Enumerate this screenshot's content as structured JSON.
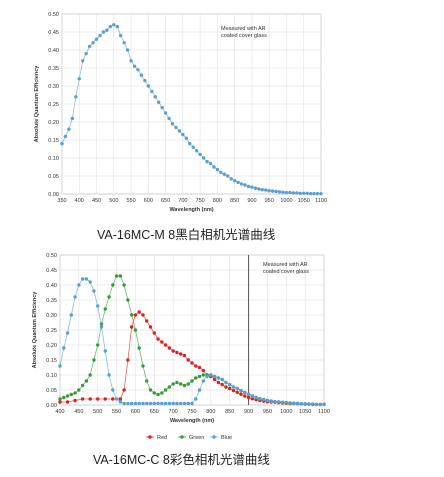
{
  "captions": {
    "chart1": "VA-16MC-M 8黑白相机光谱曲线",
    "chart2": "VA-16MC-C 8彩色相机光谱曲线"
  },
  "chart_data": [
    {
      "type": "line",
      "xlabel": "Wavelength (nm)",
      "ylabel": "Absolute Quantum Efficiency",
      "annotation": [
        "Measured with AR",
        "coated cover glass"
      ],
      "xlim": [
        350,
        1100
      ],
      "ylim": [
        0,
        0.5
      ],
      "xticks": [
        350,
        400,
        450,
        500,
        550,
        600,
        650,
        700,
        750,
        800,
        850,
        900,
        950,
        1000,
        1050,
        1100
      ],
      "yticks": [
        0,
        0.05,
        0.1,
        0.15,
        0.2,
        0.25,
        0.3,
        0.35,
        0.4,
        0.45,
        0.5
      ],
      "grid": true,
      "series": [
        {
          "color": "#5b9fd0",
          "x": [
            350,
            360,
            370,
            380,
            390,
            400,
            410,
            420,
            430,
            440,
            450,
            460,
            470,
            480,
            490,
            500,
            510,
            520,
            530,
            540,
            550,
            560,
            570,
            580,
            590,
            600,
            610,
            620,
            630,
            640,
            650,
            660,
            670,
            680,
            690,
            700,
            710,
            720,
            730,
            740,
            750,
            760,
            770,
            780,
            790,
            800,
            810,
            820,
            830,
            840,
            850,
            860,
            870,
            880,
            890,
            900,
            910,
            920,
            930,
            940,
            950,
            960,
            970,
            980,
            990,
            1000,
            1010,
            1020,
            1030,
            1040,
            1050,
            1060,
            1070,
            1080,
            1090,
            1100
          ],
          "values": [
            0.14,
            0.16,
            0.18,
            0.21,
            0.27,
            0.32,
            0.37,
            0.39,
            0.41,
            0.42,
            0.43,
            0.44,
            0.45,
            0.455,
            0.465,
            0.47,
            0.465,
            0.44,
            0.42,
            0.4,
            0.37,
            0.355,
            0.345,
            0.33,
            0.315,
            0.3,
            0.285,
            0.27,
            0.255,
            0.24,
            0.225,
            0.21,
            0.195,
            0.185,
            0.175,
            0.165,
            0.155,
            0.14,
            0.13,
            0.12,
            0.11,
            0.1,
            0.09,
            0.085,
            0.075,
            0.068,
            0.06,
            0.055,
            0.05,
            0.042,
            0.037,
            0.032,
            0.028,
            0.025,
            0.021,
            0.019,
            0.016,
            0.014,
            0.012,
            0.011,
            0.009,
            0.008,
            0.007,
            0.006,
            0.005,
            0.004,
            0.004,
            0.003,
            0.003,
            0.002,
            0.002,
            0.002,
            0.001,
            0.001,
            0.001,
            0.001
          ]
        }
      ]
    },
    {
      "type": "line",
      "xlabel": "Wavelength (nm)",
      "ylabel": "Absolute Quantum Efficiency",
      "annotation": [
        "Measured with AR",
        "coated cover glass"
      ],
      "xlim": [
        400,
        1100
      ],
      "ylim": [
        0,
        0.5
      ],
      "xticks": [
        400,
        450,
        500,
        550,
        600,
        650,
        700,
        750,
        800,
        850,
        900,
        950,
        1000,
        1050,
        1100
      ],
      "yticks": [
        0,
        0.05,
        0.1,
        0.15,
        0.2,
        0.25,
        0.3,
        0.35,
        0.4,
        0.45,
        0.5
      ],
      "grid": true,
      "vline": 900,
      "legend": "bottom",
      "series": [
        {
          "name": "Red",
          "color": "#e02020",
          "x": [
            400,
            420,
            440,
            460,
            480,
            500,
            520,
            540,
            560,
            570,
            580,
            590,
            600,
            610,
            620,
            630,
            640,
            650,
            660,
            670,
            680,
            690,
            700,
            710,
            720,
            730,
            740,
            750,
            760,
            770,
            780,
            790,
            800,
            810,
            820,
            830,
            840,
            850,
            860,
            870,
            880,
            890,
            900,
            910,
            920,
            930,
            940,
            950,
            960,
            970,
            980,
            990,
            1000,
            1010,
            1020,
            1030,
            1040,
            1050,
            1060,
            1070,
            1080,
            1090,
            1100
          ],
          "values": [
            0.01,
            0.01,
            0.015,
            0.02,
            0.02,
            0.02,
            0.02,
            0.02,
            0.02,
            0.05,
            0.15,
            0.26,
            0.3,
            0.31,
            0.3,
            0.28,
            0.26,
            0.24,
            0.22,
            0.21,
            0.2,
            0.19,
            0.18,
            0.175,
            0.17,
            0.165,
            0.15,
            0.14,
            0.13,
            0.125,
            0.115,
            0.1,
            0.095,
            0.085,
            0.075,
            0.068,
            0.06,
            0.055,
            0.048,
            0.042,
            0.036,
            0.03,
            0.025,
            0.021,
            0.018,
            0.015,
            0.013,
            0.011,
            0.01,
            0.009,
            0.008,
            0.007,
            0.006,
            0.005,
            0.005,
            0.004,
            0.004,
            0.003,
            0.003,
            0.002,
            0.002,
            0.002,
            0.002
          ]
        },
        {
          "name": "Green",
          "color": "#3a9a3a",
          "x": [
            400,
            410,
            420,
            430,
            440,
            450,
            460,
            470,
            480,
            490,
            500,
            510,
            520,
            530,
            540,
            550,
            560,
            570,
            580,
            590,
            600,
            610,
            620,
            630,
            640,
            650,
            660,
            670,
            680,
            690,
            700,
            710,
            720,
            730,
            740,
            750,
            760,
            770,
            780,
            790,
            800,
            810,
            820,
            830,
            840,
            850,
            860,
            870,
            880,
            890,
            900,
            910,
            920,
            930,
            940,
            950,
            960,
            970,
            980,
            990,
            1000,
            1010,
            1020,
            1030,
            1040,
            1050,
            1060,
            1070,
            1080,
            1090,
            1100
          ],
          "values": [
            0.02,
            0.025,
            0.03,
            0.035,
            0.04,
            0.05,
            0.065,
            0.08,
            0.1,
            0.15,
            0.2,
            0.27,
            0.32,
            0.36,
            0.4,
            0.43,
            0.43,
            0.4,
            0.35,
            0.3,
            0.25,
            0.19,
            0.13,
            0.08,
            0.05,
            0.04,
            0.035,
            0.04,
            0.05,
            0.06,
            0.07,
            0.075,
            0.07,
            0.065,
            0.07,
            0.08,
            0.09,
            0.095,
            0.1,
            0.1,
            0.1,
            0.095,
            0.09,
            0.085,
            0.075,
            0.068,
            0.06,
            0.055,
            0.048,
            0.042,
            0.036,
            0.03,
            0.025,
            0.021,
            0.018,
            0.015,
            0.013,
            0.011,
            0.01,
            0.009,
            0.008,
            0.007,
            0.006,
            0.005,
            0.004,
            0.004,
            0.003,
            0.003,
            0.002,
            0.002,
            0.002
          ]
        },
        {
          "name": "Blue",
          "color": "#5b9fd0",
          "x": [
            400,
            410,
            420,
            430,
            440,
            450,
            460,
            470,
            480,
            490,
            500,
            510,
            520,
            530,
            540,
            550,
            560,
            570,
            580,
            590,
            600,
            610,
            620,
            630,
            640,
            650,
            660,
            670,
            680,
            690,
            700,
            710,
            720,
            730,
            740,
            750,
            760,
            770,
            780,
            790,
            800,
            810,
            820,
            830,
            840,
            850,
            860,
            870,
            880,
            890,
            900,
            910,
            920,
            930,
            940,
            950,
            960,
            970,
            980,
            990,
            1000,
            1010,
            1020,
            1030,
            1040,
            1050,
            1060,
            1070,
            1080,
            1090,
            1100
          ],
          "values": [
            0.13,
            0.19,
            0.24,
            0.3,
            0.36,
            0.4,
            0.42,
            0.42,
            0.41,
            0.38,
            0.33,
            0.26,
            0.18,
            0.1,
            0.05,
            0.02,
            0.01,
            0.005,
            0.005,
            0.005,
            0.005,
            0.005,
            0.005,
            0.005,
            0.005,
            0.005,
            0.005,
            0.005,
            0.005,
            0.005,
            0.005,
            0.005,
            0.005,
            0.005,
            0.005,
            0.005,
            0.02,
            0.05,
            0.08,
            0.095,
            0.1,
            0.095,
            0.09,
            0.085,
            0.075,
            0.068,
            0.06,
            0.055,
            0.048,
            0.042,
            0.036,
            0.03,
            0.025,
            0.021,
            0.018,
            0.015,
            0.013,
            0.011,
            0.01,
            0.009,
            0.008,
            0.007,
            0.006,
            0.005,
            0.004,
            0.004,
            0.003,
            0.003,
            0.002,
            0.002,
            0.002
          ]
        }
      ]
    }
  ]
}
